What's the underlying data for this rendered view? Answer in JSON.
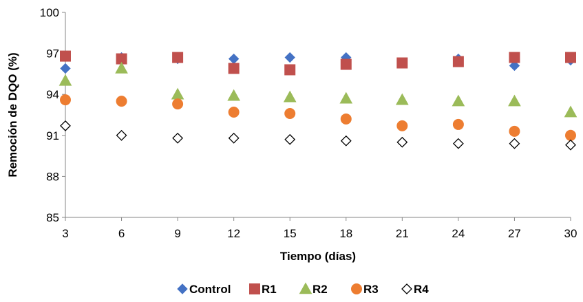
{
  "chart_data": {
    "type": "scatter",
    "xlabel": "Tiempo (días)",
    "ylabel": "Remoción de DQO (%)",
    "xlim": [
      3,
      30
    ],
    "ylim": [
      85,
      100
    ],
    "x_ticks": [
      "3",
      "6",
      "9",
      "12",
      "15",
      "18",
      "21",
      "24",
      "27",
      "30"
    ],
    "y_ticks": [
      "85",
      "88",
      "91",
      "94",
      "97",
      "100"
    ],
    "grid": false,
    "legend_position": "bottom",
    "x": [
      3,
      6,
      9,
      12,
      15,
      18,
      21,
      24,
      27,
      30
    ],
    "series": [
      {
        "name": "Control",
        "marker": "diamond",
        "color": "#4472C4",
        "filled": true,
        "values": [
          95.9,
          96.7,
          96.6,
          96.6,
          96.7,
          96.7,
          96.3,
          96.6,
          96.1,
          96.5
        ]
      },
      {
        "name": "R1",
        "marker": "square",
        "color": "#C0504D",
        "filled": true,
        "values": [
          96.8,
          96.6,
          96.7,
          95.9,
          95.8,
          96.2,
          96.3,
          96.4,
          96.7,
          96.7
        ]
      },
      {
        "name": "R2",
        "marker": "triangle",
        "color": "#9BBB59",
        "filled": true,
        "values": [
          95.0,
          95.9,
          94.0,
          93.9,
          93.8,
          93.7,
          93.6,
          93.5,
          93.5,
          92.7
        ]
      },
      {
        "name": "R3",
        "marker": "circle",
        "color": "#ED7D31",
        "filled": true,
        "values": [
          93.6,
          93.5,
          93.3,
          92.7,
          92.6,
          92.2,
          91.7,
          91.8,
          91.3,
          91.0
        ]
      },
      {
        "name": "R4",
        "marker": "diamond",
        "color": "#000000",
        "filled": false,
        "values": [
          91.7,
          91.0,
          90.8,
          90.8,
          90.7,
          90.6,
          90.5,
          90.4,
          90.4,
          90.3
        ]
      }
    ]
  }
}
